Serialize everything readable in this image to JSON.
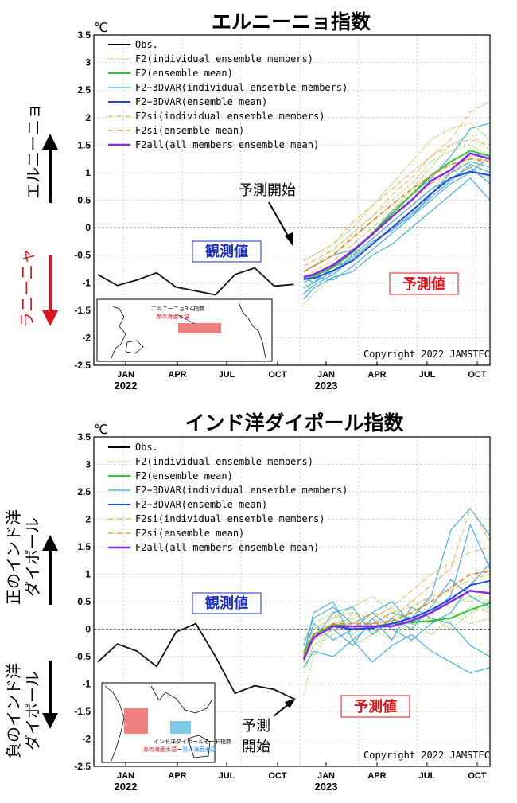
{
  "chart_data": [
    {
      "type": "line",
      "title": "エルニーニョ指数",
      "unit": "℃",
      "ylim": [
        -2.5,
        3.5
      ],
      "yticks": [
        "3.5",
        "3",
        "2.5",
        "2",
        "1.5",
        "1",
        "0.5",
        "0",
        "-0.5",
        "-1",
        "-1.5",
        "-2",
        "-2.5"
      ],
      "xticks": [
        "JAN",
        "APR",
        "JUL",
        "OCT",
        "JAN",
        "APR",
        "JUL",
        "OCT"
      ],
      "years": [
        "2022",
        "2023"
      ],
      "grid": true,
      "legend_position": "top-left",
      "legend": [
        {
          "label": "Obs.",
          "color": "#000000",
          "style": "solid"
        },
        {
          "label": "F2(individual ensemble members)",
          "color": "#9fd84a",
          "style": "dotted"
        },
        {
          "label": "F2(ensemble mean)",
          "color": "#2ec82e",
          "style": "solid"
        },
        {
          "label": "F2−3DVAR(individual ensemble members)",
          "color": "#3aa8e8",
          "style": "solid"
        },
        {
          "label": "F2−3DVAR(ensemble mean)",
          "color": "#2046e0",
          "style": "solid"
        },
        {
          "label": "F2si(individual ensemble members)",
          "color": "#e8b060",
          "style": "dashdot"
        },
        {
          "label": "F2si(ensemble mean)",
          "color": "#e89030",
          "style": "dashdot"
        },
        {
          "label": "F2all(all members ensemble mean)",
          "color": "#8a2be2",
          "style": "solid"
        }
      ],
      "observed": {
        "x": [
          0,
          1,
          2,
          3,
          4,
          5,
          6,
          7,
          8,
          9,
          10
        ],
        "y": [
          -0.85,
          -1.05,
          -0.95,
          -0.82,
          -1.08,
          -1.15,
          -1.22,
          -0.85,
          -0.73,
          -1.06,
          -1.03
        ]
      },
      "forecast_x": [
        10.5,
        11,
        12,
        13,
        14,
        15,
        16,
        17,
        18,
        19,
        20
      ],
      "ensemble_means": [
        {
          "color": "#2ec82e",
          "y": [
            -0.95,
            -0.88,
            -0.72,
            -0.45,
            -0.1,
            0.25,
            0.6,
            0.95,
            1.2,
            1.4,
            1.3
          ]
        },
        {
          "color": "#2046e0",
          "y": [
            -0.93,
            -0.92,
            -0.78,
            -0.6,
            -0.3,
            0,
            0.3,
            0.62,
            0.9,
            1.02,
            0.95
          ]
        },
        {
          "color": "#e89030",
          "y": [
            -0.8,
            -0.7,
            -0.5,
            -0.18,
            0.12,
            0.42,
            0.7,
            0.95,
            1.15,
            1.25,
            1.2
          ]
        },
        {
          "color": "#8a2be2",
          "y": [
            -0.9,
            -0.85,
            -0.68,
            -0.42,
            -0.12,
            0.2,
            0.5,
            0.85,
            1.05,
            1.35,
            1.25
          ]
        }
      ],
      "members": [
        {
          "color": "#9fd84a",
          "style": "dotted",
          "y": [
            -1.4,
            -1.2,
            -0.9,
            -0.5,
            -0.1,
            0.3,
            0.7,
            1.1,
            1.5,
            1.7,
            1.4
          ]
        },
        {
          "color": "#9fd84a",
          "style": "dotted",
          "y": [
            -0.6,
            -0.5,
            -0.3,
            0,
            0.4,
            0.8,
            1.2,
            1.6,
            1.8,
            1.9,
            1.6
          ]
        },
        {
          "color": "#9fd84a",
          "style": "dotted",
          "y": [
            -1.1,
            -0.9,
            -0.7,
            -0.6,
            -0.3,
            0.1,
            0.4,
            0.7,
            1,
            1.3,
            1.2
          ]
        },
        {
          "color": "#9fd84a",
          "style": "dotted",
          "y": [
            -0.8,
            -0.7,
            -0.4,
            -0.1,
            0.2,
            0.5,
            0.8,
            1.2,
            1.4,
            1.5,
            1.3
          ]
        },
        {
          "color": "#9fd84a",
          "style": "dotted",
          "y": [
            -1.2,
            -1,
            -0.8,
            -0.5,
            -0.3,
            0,
            0.3,
            0.6,
            0.9,
            1,
            0.9
          ]
        },
        {
          "color": "#3aa8e8",
          "style": "solid",
          "y": [
            -1,
            -0.9,
            -0.95,
            -0.7,
            -0.4,
            -0.1,
            0.2,
            0.6,
            1,
            1.2,
            1.1
          ]
        },
        {
          "color": "#3aa8e8",
          "style": "solid",
          "y": [
            -1.3,
            -1.1,
            -0.9,
            -0.8,
            -0.5,
            -0.3,
            0,
            0.3,
            0.6,
            0.9,
            0.5
          ]
        },
        {
          "color": "#3aa8e8",
          "style": "solid",
          "y": [
            -0.8,
            -0.7,
            -0.5,
            -0.4,
            -0.1,
            0.3,
            0.6,
            0.9,
            1.3,
            1.8,
            1.9
          ]
        },
        {
          "color": "#3aa8e8",
          "style": "solid",
          "y": [
            -1.1,
            -1,
            -0.8,
            -0.5,
            -0.2,
            0.1,
            0.4,
            0.7,
            0.9,
            1.1,
            0.8
          ]
        },
        {
          "color": "#3aa8e8",
          "style": "solid",
          "y": [
            -0.9,
            -1,
            -0.7,
            -0.6,
            -0.3,
            0,
            0.2,
            0.5,
            0.8,
            1,
            1.3
          ]
        },
        {
          "color": "#3aa8e8",
          "style": "solid",
          "y": [
            -1.2,
            -1.05,
            -0.85,
            -0.55,
            -0.25,
            -0.05,
            0.25,
            0.55,
            0.85,
            1.15,
            1
          ]
        },
        {
          "color": "#e8b060",
          "style": "dashdot",
          "y": [
            -0.7,
            -0.6,
            -0.4,
            -0.1,
            0.2,
            0.6,
            0.9,
            1.3,
            1.6,
            2.1,
            2.3
          ]
        },
        {
          "color": "#e8b060",
          "style": "dashdot",
          "y": [
            -0.9,
            -0.8,
            -0.6,
            -0.3,
            0,
            0.3,
            0.6,
            0.8,
            1,
            1.1,
            1.2
          ]
        },
        {
          "color": "#e8b060",
          "style": "dashdot",
          "y": [
            -0.6,
            -0.5,
            -0.3,
            0.1,
            0.4,
            0.7,
            1,
            1.3,
            1.5,
            1.6,
            1.5
          ]
        }
      ]
    },
    {
      "type": "line",
      "title": "インド洋ダイポール指数",
      "unit": "℃",
      "ylim": [
        -2.5,
        3.5
      ],
      "yticks": [
        "3.5",
        "3",
        "2.5",
        "2",
        "1.5",
        "1",
        "0.5",
        "0",
        "-0.5",
        "-1",
        "-1.5",
        "-2",
        "-2.5"
      ],
      "xticks": [
        "JAN",
        "APR",
        "JUL",
        "OCT",
        "JAN",
        "APR",
        "JUL",
        "OCT"
      ],
      "years": [
        "2022",
        "2023"
      ],
      "grid": true,
      "legend_position": "top-left",
      "legend": [
        {
          "label": "Obs.",
          "color": "#000000",
          "style": "solid"
        },
        {
          "label": "F2(individual ensemble members)",
          "color": "#9fd84a",
          "style": "dotted"
        },
        {
          "label": "F2(ensemble mean)",
          "color": "#2ec82e",
          "style": "solid"
        },
        {
          "label": "F2−3DVAR(individual ensemble members)",
          "color": "#3aa8e8",
          "style": "solid"
        },
        {
          "label": "F2−3DVAR(ensemble mean)",
          "color": "#2046e0",
          "style": "solid"
        },
        {
          "label": "F2si(individual ensemble members)",
          "color": "#e8b060",
          "style": "dashdot"
        },
        {
          "label": "F2si(ensemble mean)",
          "color": "#e89030",
          "style": "dashdot"
        },
        {
          "label": "F2all(all members ensemble mean)",
          "color": "#8a2be2",
          "style": "solid"
        }
      ],
      "observed": {
        "x": [
          0,
          1,
          2,
          3,
          4,
          5,
          6,
          7,
          8,
          9,
          10
        ],
        "y": [
          -0.6,
          -0.27,
          -0.4,
          -0.68,
          -0.05,
          0.1,
          -0.5,
          -1.17,
          -1.03,
          -1.1,
          -1.27
        ]
      },
      "forecast_x": [
        10.5,
        11,
        12,
        13,
        14,
        15,
        16,
        17,
        18,
        19,
        20
      ],
      "ensemble_means": [
        {
          "color": "#2ec82e",
          "y": [
            -0.45,
            -0.1,
            0.08,
            0.05,
            0.05,
            0.1,
            0.12,
            0.15,
            0.2,
            0.35,
            0.48
          ]
        },
        {
          "color": "#2046e0",
          "y": [
            -0.55,
            -0.15,
            0.05,
            0,
            0.02,
            0.1,
            0.2,
            0.35,
            0.55,
            0.8,
            0.88
          ]
        },
        {
          "color": "#e89030",
          "y": [
            -0.5,
            -0.1,
            0.1,
            0.1,
            0.1,
            0.15,
            0.3,
            0.5,
            0.75,
            1,
            1.05
          ]
        },
        {
          "color": "#8a2be2",
          "y": [
            -0.55,
            -0.15,
            0.05,
            0.05,
            0.05,
            0.05,
            0.15,
            0.3,
            0.5,
            0.7,
            0.65
          ]
        }
      ],
      "members": [
        {
          "color": "#9fd84a",
          "style": "dotted",
          "y": [
            -1.2,
            -0.5,
            0.1,
            0.2,
            -0.1,
            0.1,
            0.3,
            0.5,
            0.4,
            0.6,
            0.5
          ]
        },
        {
          "color": "#9fd84a",
          "style": "dotted",
          "y": [
            -0.2,
            0.1,
            0.3,
            -0.1,
            0.2,
            0.4,
            0.1,
            0.2,
            0,
            0.3,
            0.4
          ]
        },
        {
          "color": "#9fd84a",
          "style": "dotted",
          "y": [
            -0.6,
            -0.3,
            -0.1,
            0.3,
            0,
            -0.2,
            0.2,
            0.1,
            0.3,
            0.1,
            0.2
          ]
        },
        {
          "color": "#9fd84a",
          "style": "dotted",
          "y": [
            -0.4,
            0,
            0.2,
            0.4,
            0.6,
            0.3,
            0.1,
            -0.1,
            0.2,
            0.4,
            0.3
          ]
        },
        {
          "color": "#9fd84a",
          "style": "dotted",
          "y": [
            -0.8,
            -0.3,
            0,
            -0.3,
            -0.1,
            0.2,
            0.5,
            0.3,
            0.6,
            0.5,
            0.7
          ]
        },
        {
          "color": "#3aa8e8",
          "style": "solid",
          "y": [
            -0.5,
            0.3,
            0.5,
            -0.2,
            0.1,
            0.3,
            0.2,
            0.6,
            1.8,
            2.2,
            1.7
          ]
        },
        {
          "color": "#3aa8e8",
          "style": "solid",
          "y": [
            -0.7,
            -0.4,
            -0.5,
            -0.2,
            -0.6,
            -0.3,
            -0.1,
            -0.4,
            -0.6,
            -0.8,
            -0.7
          ]
        },
        {
          "color": "#3aa8e8",
          "style": "solid",
          "y": [
            -0.3,
            0.2,
            0.4,
            0.1,
            0.3,
            0.5,
            0.1,
            0.3,
            0.6,
            1.9,
            1.1
          ]
        },
        {
          "color": "#3aa8e8",
          "style": "solid",
          "y": [
            -0.6,
            -0.1,
            0,
            -0.3,
            0.2,
            -0.2,
            0.4,
            0.2,
            0.1,
            -0.3,
            -0.5
          ]
        },
        {
          "color": "#3aa8e8",
          "style": "solid",
          "y": [
            -0.4,
            -0.2,
            0.3,
            0.4,
            -0.1,
            0.2,
            0,
            0.4,
            0.9,
            0.6,
            0.4
          ]
        },
        {
          "color": "#3aa8e8",
          "style": "solid",
          "y": [
            -0.5,
            0.1,
            -0.2,
            0,
            0.3,
            0,
            -0.2,
            0.1,
            0.3,
            0.8,
            1.2
          ]
        },
        {
          "color": "#e8b060",
          "style": "dashdot",
          "y": [
            -0.4,
            0,
            0.2,
            0.3,
            0.2,
            0.4,
            0.7,
            1,
            1.2,
            1.4,
            1.5
          ]
        },
        {
          "color": "#e8b060",
          "style": "dashdot",
          "y": [
            -0.5,
            -0.2,
            0,
            0.1,
            0.3,
            0.2,
            0.5,
            0.8,
            1.1,
            2.2,
            1.6
          ]
        },
        {
          "color": "#e8b060",
          "style": "dashdot",
          "y": [
            -0.6,
            -0.1,
            0.1,
            0,
            0.1,
            0.3,
            0.4,
            0.6,
            0.7,
            0.9,
            1
          ]
        }
      ]
    }
  ],
  "annotations": {
    "copyright": "Copyright 2022 JAMSTEC",
    "observed_label": "観測値",
    "forecast_label": "予測値",
    "forecast_start": "予測開始",
    "forecast_start_line1": "予測",
    "forecast_start_line2": "開始",
    "enso_positive": "エルニーニョ",
    "enso_negative": "ラニーニャ",
    "iod_positive_line1": "正のインド洋",
    "iod_positive_line2": "ダイポール",
    "iod_negative_line1": "負のインド洋",
    "iod_negative_line2": "ダイポール"
  },
  "inset_enso": {
    "line1": "エルニーニョ3.4指数",
    "line2": "赤の海面水温",
    "region_color": "#f08080"
  },
  "inset_iod": {
    "line1": "インド洋ダイポールモード指数",
    "line2a": "赤の海面水温",
    "line2b": "ー",
    "line2c": "青の海面水温",
    "west_color": "#f08080",
    "east_color": "#7ec8e8"
  },
  "colors": {
    "positive_arrow": "#000000",
    "negative_arrow_enso": "#e0141e",
    "observed_label": "#1a2fbf",
    "forecast_label": "#e0141e"
  }
}
